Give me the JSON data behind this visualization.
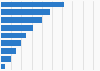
{
  "values": [
    30.8,
    24.1,
    20.3,
    15.7,
    12.4,
    9.8,
    7.2,
    5.1,
    1.9
  ],
  "bar_color": "#2b7bca",
  "background_color": "#f9f9f9",
  "grid_color": "#d9d9d9",
  "xlim": [
    0,
    48
  ],
  "figsize": [
    1.0,
    0.71
  ],
  "dpi": 100
}
